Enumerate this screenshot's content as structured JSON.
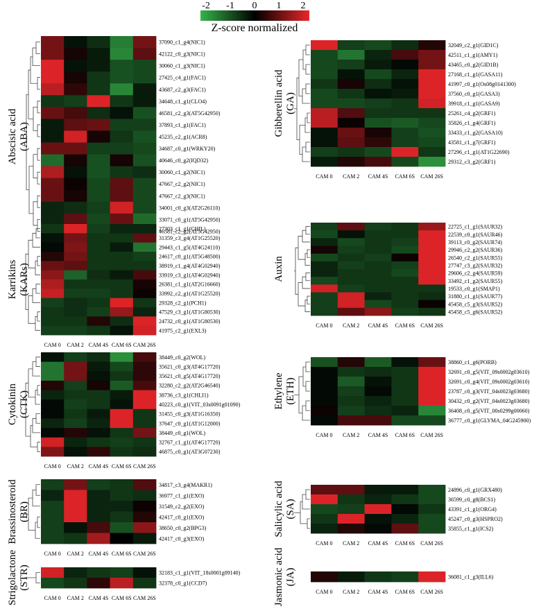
{
  "color_scale": {
    "title": "Z-score normalized",
    "ticks": [
      "-2",
      "-1",
      "0",
      "1",
      "2"
    ],
    "min": -2,
    "max": 2,
    "colors": {
      "low": "#36b34a",
      "mid": "#000000",
      "high": "#e8262a"
    }
  },
  "chart_data": [
    {
      "type": "heatmap",
      "title_line1": "Abscisic acid",
      "title_line2": "(ABA)",
      "columns": [
        "CAM 0",
        "CAM 2",
        "CAM 4S",
        "CAM 6S",
        "CAM 26S"
      ],
      "rows": [
        "37090_c1_g4(NIC1)",
        "42122_c0_g3(NIC1)",
        "30060_c1_g3(NIC1)",
        "27425_c4_g1(FAC1)",
        "43687_c2_g3(FAC1)",
        "34648_c1_g1(CLO4)",
        "46581_c2_g3(AT5G42950)",
        "37893_c1_g1(FAC1)",
        "45235_c2_g1(ACR8)",
        "34687_c0_g1(WRKY20)",
        "40646_c0_g2(IQD32)",
        "30060_c1_g2(NIC1)",
        "47667_c2_g2(NIC1)",
        "47667_c2_g3(NIC1)",
        "34001_c0_g3(AT2G26110)",
        "33071_c0_g1(AT5G42950)",
        "46581_c2_g2(AT5G42950)"
      ],
      "values": [
        [
          1.0,
          -0.2,
          -0.5,
          -1.4,
          1.0
        ],
        [
          1.0,
          0.2,
          -0.3,
          -1.5,
          0.8
        ],
        [
          1.9,
          -0.2,
          -0.3,
          -0.9,
          -0.8
        ],
        [
          1.9,
          0.2,
          -0.6,
          -0.9,
          -0.8
        ],
        [
          1.6,
          0.4,
          -0.6,
          -1.5,
          -0.3
        ],
        [
          -0.6,
          -0.7,
          1.9,
          -0.6,
          -0.3
        ],
        [
          0.9,
          0.6,
          -0.5,
          -0.2,
          -0.9
        ],
        [
          -0.3,
          0.8,
          0.9,
          -0.7,
          -0.7
        ],
        [
          -0.3,
          1.8,
          0.2,
          -0.6,
          -0.9
        ],
        [
          0.9,
          0.9,
          -0.7,
          -0.7,
          -0.8
        ],
        [
          -1.2,
          0.2,
          -0.9,
          0.2,
          -0.9
        ],
        [
          1.5,
          -0.2,
          -0.9,
          -0.6,
          -0.5
        ],
        [
          0.9,
          0.1,
          -0.8,
          0.8,
          -0.8
        ],
        [
          0.9,
          0.2,
          -0.8,
          0.8,
          -0.8
        ],
        [
          -0.4,
          -0.5,
          -0.7,
          1.8,
          -0.8
        ],
        [
          -0.4,
          0.8,
          -0.8,
          0.9,
          -1.2
        ],
        [
          -0.4,
          0.8,
          -0.8,
          0.6,
          -1.0
        ]
      ]
    },
    {
      "type": "heatmap",
      "title_line1": "Gibberellin acid",
      "title_line2": "(GA)",
      "columns": [
        "CAM 0",
        "CAM 2",
        "CAM 4S",
        "CAM 6S",
        "CAM 26S"
      ],
      "rows": [
        "32049_c2_g1(GID1C)",
        "42511_c1_g1(AMY1)",
        "43465_c0_g2(GID1B)",
        "27168_c1_g1(GASA11)",
        "41997_c0_g1(Os08g0141300)",
        "37560_c0_g1(GASA3)",
        "39918_c1_g1(GASA9)",
        "25261_c4_g2(GRF1)",
        "35826_c1_g4(GRF1)",
        "33433_c1_g2(GASA10)",
        "43581_c1_g7(GRF1)",
        "27296_c1_g1(AT1G22690)",
        "29312_c3_g2(GRF1)"
      ],
      "values": [
        [
          1.9,
          -0.7,
          -0.8,
          -0.5,
          0.3
        ],
        [
          -0.8,
          -1.3,
          -0.4,
          0.6,
          1.0
        ],
        [
          -0.8,
          -0.7,
          -0.3,
          -0.1,
          1.0
        ],
        [
          -0.8,
          -0.2,
          -0.8,
          -0.4,
          1.9
        ],
        [
          -0.6,
          0.2,
          -0.5,
          -0.2,
          1.9
        ],
        [
          -0.8,
          -0.6,
          -0.2,
          -0.3,
          1.9
        ],
        [
          -0.8,
          -0.8,
          -0.7,
          -0.6,
          1.8
        ],
        [
          1.6,
          0.7,
          -0.6,
          -0.6,
          -0.6
        ],
        [
          1.6,
          0.1,
          -0.9,
          -1.0,
          -0.8
        ],
        [
          -0.2,
          0.9,
          0.2,
          -0.7,
          -0.9
        ],
        [
          -0.2,
          0.8,
          0.4,
          -0.7,
          -0.8
        ],
        [
          -0.7,
          -0.6,
          -0.8,
          1.9,
          -0.6
        ],
        [
          -0.3,
          0.3,
          0.6,
          -0.8,
          -1.6
        ]
      ]
    },
    {
      "type": "heatmap",
      "title_line1": "Karrikins",
      "title_line2": "(KARs)",
      "columns": [
        "CAM 0",
        "CAM 2",
        "CAM 4S",
        "CAM 6S",
        "CAM 26S"
      ],
      "rows": [
        "27303_c1_g1(CHIL)",
        "31359_c3_g4(AT1G25520)",
        "29443_c1_g5(AT4G24110)",
        "24617_c0_g1(AT5G48500)",
        "38919_c1_g4(AT4G02940)",
        "33919_c3_g1(AT4G02940)",
        "26381_c1_g1(AT2G16660)",
        "33992_c2_g1(AT1G25520)",
        "29328_c2_g1(PCH1)",
        "47529_c3_g1(AT1G80530)",
        "24732_c0_g1(AT1G80530)",
        "41975_c2_g1(EXL3)"
      ],
      "values": [
        [
          -0.6,
          1.9,
          -0.7,
          -0.4,
          -0.4
        ],
        [
          -0.2,
          1.0,
          -0.6,
          -0.6,
          0.8
        ],
        [
          -0.1,
          1.1,
          -0.6,
          -0.3,
          -1.3
        ],
        [
          0.3,
          1.0,
          -0.6,
          -0.6,
          -0.7
        ],
        [
          0.9,
          0.8,
          -0.6,
          -0.6,
          -0.6
        ],
        [
          1.2,
          -1.1,
          -0.5,
          -0.3,
          0.6
        ],
        [
          1.5,
          -0.6,
          -0.6,
          -0.6,
          0.2
        ],
        [
          1.7,
          -0.7,
          -0.7,
          -0.6,
          0.1
        ],
        [
          -0.7,
          -0.5,
          -0.6,
          1.9,
          -0.6
        ],
        [
          -0.6,
          -0.5,
          -0.7,
          1.3,
          -0.4
        ],
        [
          -0.6,
          -0.6,
          0.3,
          -0.5,
          1.9
        ],
        [
          -0.7,
          -0.7,
          -0.6,
          -0.2,
          1.8
        ]
      ]
    },
    {
      "type": "heatmap",
      "title_line1": "Auxin",
      "title_line2": "",
      "columns": [
        "CAM 0",
        "CAM 2",
        "CAM 4S",
        "CAM 6S",
        "CAM 26S"
      ],
      "rows": [
        "22725_c1_g1(SAUR32)",
        "22539_c0_g1(SAUR46)",
        "39113_c0_g2(SAUR74)",
        "29946_c2_g2(SAUR36)",
        "26540_c2_g1(SAUR55)",
        "27747_c3_g2(SAUR32)",
        "29606_c2_g4(SAUR59)",
        "33492_c1_g2(SAUR55)",
        "19533_c0_g1(SMAP1)",
        "31880_c1_g1(SAUR77)",
        "45458_c5_g3(SAUR52)",
        "45458_c5_g6(SAUR52)"
      ],
      "values": [
        [
          -0.7,
          0.8,
          -0.7,
          -0.6,
          1.3
        ],
        [
          -0.8,
          -0.2,
          -0.6,
          -0.6,
          1.9
        ],
        [
          -0.4,
          -0.8,
          -0.6,
          -0.7,
          1.9
        ],
        [
          0.2,
          -0.7,
          -0.6,
          -0.8,
          1.9
        ],
        [
          -0.8,
          -0.6,
          -0.7,
          0.1,
          1.9
        ],
        [
          -0.4,
          -0.7,
          -0.6,
          -0.7,
          1.9
        ],
        [
          -0.4,
          -0.6,
          -0.6,
          -0.8,
          1.9
        ],
        [
          -0.8,
          -0.6,
          -0.6,
          -0.6,
          1.9
        ],
        [
          1.8,
          -0.7,
          -0.6,
          -0.6,
          -0.6
        ],
        [
          -0.7,
          1.8,
          -0.4,
          -0.6,
          -0.5
        ],
        [
          -0.7,
          1.8,
          -0.8,
          -0.6,
          0.1
        ],
        [
          -0.7,
          0.8,
          1.2,
          -0.7,
          -0.6
        ]
      ]
    },
    {
      "type": "heatmap",
      "title_line1": "Cytokinin",
      "title_line2": "(CTK)",
      "columns": [
        "CAM 0",
        "CAM 2",
        "CAM 4S",
        "CAM 6S",
        "CAM 26S"
      ],
      "rows": [
        "38449_c0_g2(WOL)",
        "35621_c0_g3(AT4G17720)",
        "35621_c0_g5(AT4G17720)",
        "32280_c2_g2(AT2G46540)",
        "38736_c3_g1(CHLI1)",
        "40223_c0_g1(VIT_03s0091g01090)",
        "31455_c0_g3(AT1G16350)",
        "37647_c0_g1(AT1G12000)",
        "38449_c0_g1(WOL)",
        "32767_c1_g1(AT4G17720)",
        "46875_c0_g1(AT3G07230)"
      ],
      "values": [
        [
          -0.2,
          -0.7,
          -0.5,
          -1.6,
          0.6
        ],
        [
          -1.3,
          1.0,
          -0.3,
          -0.8,
          0.4
        ],
        [
          -1.3,
          1.0,
          -0.2,
          -0.6,
          0.4
        ],
        [
          0.3,
          -0.7,
          0.2,
          -1.0,
          0.6
        ],
        [
          -0.4,
          -0.6,
          -0.6,
          -0.3,
          1.9
        ],
        [
          -0.1,
          -0.7,
          -0.6,
          -0.2,
          1.9
        ],
        [
          -0.1,
          -0.6,
          -0.3,
          1.9,
          -0.6
        ],
        [
          -0.4,
          -0.7,
          -0.4,
          1.9,
          -0.6
        ],
        [
          -0.1,
          0.3,
          -0.2,
          -0.6,
          1.0
        ],
        [
          1.8,
          -0.4,
          -0.6,
          -0.7,
          -0.6
        ],
        [
          1.1,
          -0.2,
          0.4,
          -0.6,
          -0.5
        ]
      ]
    },
    {
      "type": "heatmap",
      "title_line1": "Ethylene",
      "title_line2": "(ETH)",
      "columns": [
        "CAM 0",
        "CAM 2",
        "CAM 4S",
        "CAM 6S",
        "CAM 26S"
      ],
      "rows": [
        "38860_c1_g6(PORB)",
        "32691_c0_g5(VIT_09s0002g03610)",
        "32691_c0_g4(VIT_09s0002g03610)",
        "23787_c0_g3(VIT_04s0023g03680)",
        "30432_c0_g2(VIT_04s0023g03680)",
        "36408_c0_g5(VIT_00s0299g00060)",
        "36777_c0_g1(GLYMA_04G245900)"
      ],
      "values": [
        [
          -0.9,
          0.3,
          -1.0,
          -0.2,
          0.9
        ],
        [
          -0.1,
          -0.6,
          -0.5,
          -0.6,
          1.9
        ],
        [
          -0.1,
          -1.0,
          -0.2,
          -0.6,
          1.9
        ],
        [
          -0.1,
          -0.7,
          -0.1,
          -0.6,
          1.9
        ],
        [
          -0.1,
          -0.6,
          -0.4,
          -0.6,
          1.9
        ],
        [
          0.1,
          -0.7,
          -0.5,
          -0.4,
          -1.5
        ],
        [
          -0.1,
          0.6,
          0.6,
          -0.8,
          -0.8
        ]
      ]
    },
    {
      "type": "heatmap",
      "title_line1": "Brassinosteroid",
      "title_line2": "(BR)",
      "columns": [
        "CAM 0",
        "CAM 2",
        "CAM 4S",
        "CAM 6S",
        "CAM 26S"
      ],
      "rows": [
        "34817_c3_g4(MAKR1)",
        "36977_c1_g1(EXO)",
        "31549_c2_g2(EXO)",
        "42417_c0_g1(EXO)",
        "38650_c0_g2(BPG3)",
        "42417_c0_g3(EXO)"
      ],
      "values": [
        [
          -0.7,
          1.0,
          -0.7,
          -0.6,
          0.7
        ],
        [
          -0.4,
          1.9,
          -0.4,
          -0.6,
          -0.5
        ],
        [
          -0.7,
          1.9,
          -0.4,
          -0.4,
          0.1
        ],
        [
          -0.7,
          1.9,
          -0.4,
          -0.6,
          0.3
        ],
        [
          -0.7,
          -0.2,
          0.6,
          -0.9,
          1.2
        ],
        [
          -0.7,
          -0.6,
          1.4,
          0.0,
          -0.3
        ]
      ]
    },
    {
      "type": "heatmap",
      "title_line1": "Salicylic acid",
      "title_line2": "(SA)",
      "columns": [
        "CAM 0",
        "CAM 2",
        "CAM 4S",
        "CAM 6S",
        "CAM 26S"
      ],
      "rows": [
        "24896_c0_g1(GRX480)",
        "36599_c0_g8(BCS1)",
        "43391_c1_g1(ORG4)",
        "45247_c0_g3(HSPRO2)",
        "35855_c1_g1(ICS2)"
      ],
      "values": [
        [
          0.8,
          0.8,
          -0.3,
          -0.3,
          -0.8
        ],
        [
          1.9,
          -0.6,
          -0.4,
          -0.6,
          -0.8
        ],
        [
          -0.8,
          -0.7,
          1.9,
          -0.1,
          -0.6
        ],
        [
          -0.6,
          1.9,
          -0.2,
          -0.4,
          -0.8
        ],
        [
          -0.4,
          0.3,
          -0.1,
          0.8,
          -0.8
        ]
      ]
    },
    {
      "type": "heatmap",
      "title_line1": "Strigolactone",
      "title_line2": "(STR)",
      "columns": [
        "CAM 0",
        "CAM 2",
        "CAM 4S",
        "CAM 6S",
        "CAM 26S"
      ],
      "rows": [
        "32183_c1_g1(VIT_18s0001g09140)",
        "32378_c0_g1(CCD7)"
      ],
      "values": [
        [
          1.8,
          -0.4,
          -0.6,
          -0.7,
          -0.2
        ],
        [
          -0.8,
          -0.6,
          0.4,
          1.6,
          -0.6
        ]
      ]
    },
    {
      "type": "heatmap",
      "title_line1": "Jasmonic acid",
      "title_line2": "(JA)",
      "columns": [
        "CAM 0",
        "CAM 2",
        "CAM 4S",
        "CAM 6S",
        "CAM 26S"
      ],
      "rows": [
        "36081_c1_g3(ILL6)"
      ],
      "values": [
        [
          0.3,
          -0.3,
          -0.6,
          -0.7,
          1.9
        ]
      ]
    }
  ]
}
